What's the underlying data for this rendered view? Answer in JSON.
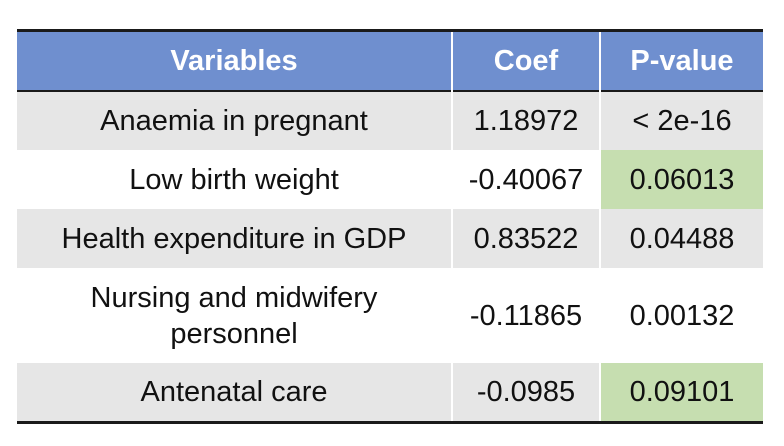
{
  "table": {
    "headers": [
      "Variables",
      "Coef",
      "P-value"
    ],
    "rows": [
      {
        "variable": "Anaemia in pregnant",
        "coef": "1.18972",
        "p_value": "< 2e-16",
        "p_highlight": false
      },
      {
        "variable": "Low birth weight",
        "coef": "-0.40067",
        "p_value": "0.06013",
        "p_highlight": true
      },
      {
        "variable": "Health expenditure in GDP",
        "coef": "0.83522",
        "p_value": "0.04488",
        "p_highlight": false
      },
      {
        "variable": "Nursing and midwifery personnel",
        "coef": "-0.11865",
        "p_value": "0.00132",
        "p_highlight": false
      },
      {
        "variable": "Antenatal care",
        "coef": "-0.0985",
        "p_value": "0.09101",
        "p_highlight": true
      }
    ]
  },
  "colors": {
    "header_bg": "#6f8fcf",
    "header_text": "#ffffff",
    "shaded_row": "#e6e6e6",
    "highlight_cell": "#c6deb0",
    "rule": "#1a1a1a"
  }
}
